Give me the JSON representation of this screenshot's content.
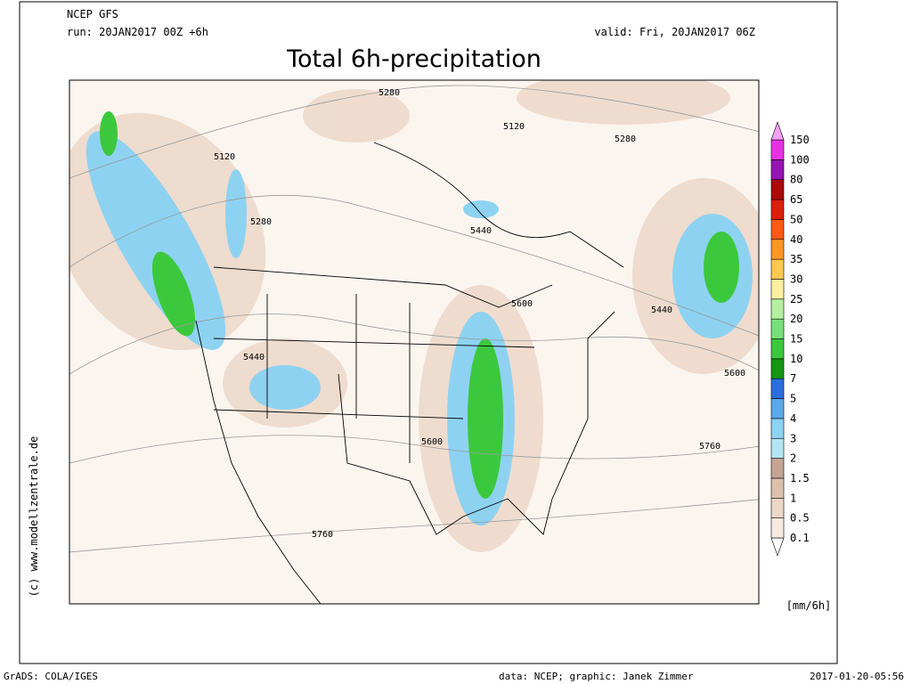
{
  "header": {
    "model": "NCEP GFS",
    "run": "run: 20JAN2017 00Z +6h",
    "valid": "valid: Fri, 20JAN2017 06Z",
    "title": "Total 6h-precipitation"
  },
  "map": {
    "contour_labels": [
      "5280",
      "5120",
      "5280",
      "5120",
      "5280",
      "5440",
      "5600",
      "5440",
      "5440",
      "5600",
      "5600",
      "5760",
      "5760"
    ]
  },
  "colorbar": {
    "labels": [
      "0.1",
      "0.5",
      "1",
      "1.5",
      "2",
      "3",
      "4",
      "5",
      "7",
      "10",
      "15",
      "20",
      "25",
      "30",
      "35",
      "40",
      "50",
      "65",
      "80",
      "100",
      "150"
    ],
    "colors": [
      "#ffffff",
      "#f6e9df",
      "#ecd6c6",
      "#dcc0ae",
      "#c4a494",
      "#b4e6f2",
      "#8ed2f2",
      "#5aa8ec",
      "#2c6ee0",
      "#149614",
      "#3cc83c",
      "#78e078",
      "#b4f0a0",
      "#fff0a0",
      "#ffc850",
      "#ff9628",
      "#ff5a14",
      "#dc1e0a",
      "#aa0a0a",
      "#9614b4",
      "#e632e6",
      "#f5a0f5"
    ],
    "unit": "[mm/6h]"
  },
  "credit": "(c) www.modellzentrale.de",
  "footer": {
    "left": "GrADS: COLA/IGES",
    "center": "data: NCEP; graphic: Janek Zimmer",
    "right": "2017-01-20-05:56"
  }
}
